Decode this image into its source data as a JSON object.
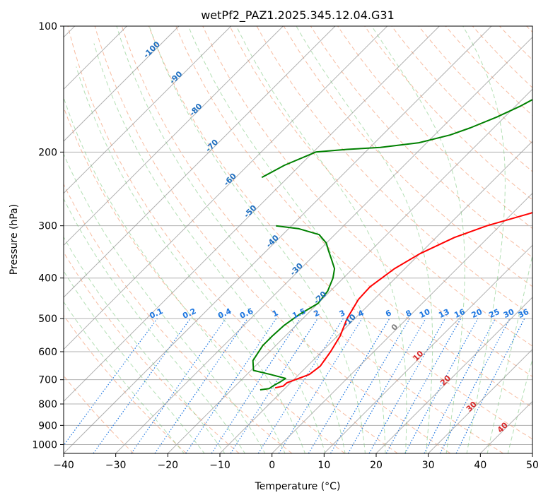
{
  "chart_data": {
    "type": "line",
    "chart_kind": "skew-t log-p diagram",
    "title": "wetPf2_PAZ1.2025.345.12.04.G31",
    "xlabel": "Temperature (°C)",
    "ylabel": "Pressure (hPa)",
    "xlim": [
      -40,
      50
    ],
    "ylim": [
      1050,
      100
    ],
    "x_ticks": [
      -40,
      -30,
      -20,
      -10,
      0,
      10,
      20,
      30,
      40,
      50
    ],
    "y_ticks": [
      1000,
      900,
      800,
      700,
      600,
      500,
      400,
      300,
      200,
      100
    ],
    "grid": true,
    "colors": {
      "temperature": "#ff0000",
      "dewpoint": "#008000",
      "isotherm": "#808080",
      "dry_adiabat": "#f4a582",
      "moist_adiabat": "#74c476",
      "mixing_ratio": "#1f77e0",
      "label_blue": "#1f6fc0",
      "label_red": "#d62728"
    },
    "series": [
      {
        "name": "temperature",
        "points": [
          {
            "p": 732,
            "t": -12.0
          },
          {
            "p": 725,
            "t": -10.8
          },
          {
            "p": 712,
            "t": -10.7
          },
          {
            "p": 700,
            "t": -9.7
          },
          {
            "p": 680,
            "t": -8.0
          },
          {
            "p": 650,
            "t": -7.5
          },
          {
            "p": 600,
            "t": -8.3
          },
          {
            "p": 550,
            "t": -9.5
          },
          {
            "p": 500,
            "t": -11.5
          },
          {
            "p": 450,
            "t": -13.0
          },
          {
            "p": 420,
            "t": -13.2
          },
          {
            "p": 380,
            "t": -12.0
          },
          {
            "p": 350,
            "t": -10.0
          },
          {
            "p": 320,
            "t": -6.5
          },
          {
            "p": 300,
            "t": -2.5
          },
          {
            "p": 280,
            "t": 3.5
          },
          {
            "p": 260,
            "t": 8.0
          },
          {
            "p": 240,
            "t": 13.0
          },
          {
            "p": 220,
            "t": 18.5
          },
          {
            "p": 200,
            "t": 22.5
          },
          {
            "p": 180,
            "t": 25.5
          },
          {
            "p": 160,
            "t": 29.5
          },
          {
            "p": 140,
            "t": 33.5
          },
          {
            "p": 120,
            "t": 38.0
          },
          {
            "p": 110,
            "t": 40.5
          },
          {
            "p": 100,
            "t": 43.0
          }
        ]
      },
      {
        "name": "dewpoint",
        "points": [
          {
            "p": 740,
            "t": -14.5
          },
          {
            "p": 735,
            "t": -13.0
          },
          {
            "p": 722,
            "t": -12.7
          },
          {
            "p": 710,
            "t": -12.2
          },
          {
            "p": 695,
            "t": -11.8
          },
          {
            "p": 680,
            "t": -15.5
          },
          {
            "p": 665,
            "t": -19.5
          },
          {
            "p": 630,
            "t": -21.5
          },
          {
            "p": 580,
            "t": -22.5
          },
          {
            "p": 550,
            "t": -22.5
          },
          {
            "p": 520,
            "t": -22.3
          },
          {
            "p": 490,
            "t": -21.5
          },
          {
            "p": 460,
            "t": -20.0
          },
          {
            "p": 430,
            "t": -20.5
          },
          {
            "p": 400,
            "t": -22.0
          },
          {
            "p": 380,
            "t": -23.5
          },
          {
            "p": 360,
            "t": -26.0
          },
          {
            "p": 345,
            "t": -28.0
          },
          {
            "p": 330,
            "t": -30.0
          },
          {
            "p": 315,
            "t": -33.0
          },
          {
            "p": 305,
            "t": -38.0
          },
          {
            "p": 300,
            "t": -43.0
          }
        ]
      },
      {
        "name": "dewpoint-upper",
        "points": [
          {
            "p": 230,
            "t": -55.0
          },
          {
            "p": 215,
            "t": -53.0
          },
          {
            "p": 200,
            "t": -49.5
          },
          {
            "p": 197,
            "t": -44.0
          },
          {
            "p": 195,
            "t": -38.0
          },
          {
            "p": 190,
            "t": -31.5
          },
          {
            "p": 182,
            "t": -27.0
          },
          {
            "p": 175,
            "t": -24.5
          },
          {
            "p": 165,
            "t": -21.5
          },
          {
            "p": 155,
            "t": -19.0
          },
          {
            "p": 140,
            "t": -16.0
          },
          {
            "p": 130,
            "t": -13.5
          },
          {
            "p": 120,
            "t": -11.5
          },
          {
            "p": 110,
            "t": -8.5
          },
          {
            "p": 100,
            "t": -4.5
          }
        ]
      }
    ],
    "dry_adiabat_labels": [
      {
        "text": "-100",
        "t": -100,
        "p": 115
      },
      {
        "text": "-90",
        "t": -90,
        "p": 134
      },
      {
        "text": "-80",
        "t": -80,
        "p": 160
      },
      {
        "text": "-70",
        "t": -70,
        "p": 195
      },
      {
        "text": "-60",
        "t": -60,
        "p": 235
      },
      {
        "text": "-50",
        "t": -50,
        "p": 280
      },
      {
        "text": "-40",
        "t": -40,
        "p": 330
      },
      {
        "text": "-30",
        "t": -30,
        "p": 385
      },
      {
        "text": "-20",
        "t": -20,
        "p": 450
      },
      {
        "text": "-10",
        "t": -10,
        "p": 510
      }
    ],
    "moist_adiabat_labels": [
      {
        "text": "0",
        "t": 0,
        "p": 530
      },
      {
        "text": "10",
        "t": 10,
        "p": 620
      },
      {
        "text": "20",
        "t": 20,
        "p": 710
      },
      {
        "text": "30",
        "t": 30,
        "p": 820
      },
      {
        "text": "40",
        "t": 40,
        "p": 920
      }
    ],
    "mixing_ratio_lines": [
      {
        "label": "0.1",
        "top": -23.6
      },
      {
        "label": "0.2",
        "top": -18.4
      },
      {
        "label": "0.4",
        "top": -12.9
      },
      {
        "label": "0.6",
        "top": -9.8
      },
      {
        "label": "1",
        "top": -5.8
      },
      {
        "label": "1.5",
        "top": -2.3
      },
      {
        "label": "2",
        "top": 0.7
      },
      {
        "label": "3",
        "top": 5.3
      },
      {
        "label": "4",
        "top": 8.7
      },
      {
        "label": "6",
        "top": 13.8
      },
      {
        "label": "8",
        "top": 17.6
      },
      {
        "label": "10",
        "top": 20.6
      },
      {
        "label": "13",
        "top": 24.3
      },
      {
        "label": "16",
        "top": 27.3
      },
      {
        "label": "20",
        "top": 30.5
      },
      {
        "label": "25",
        "top": 33.8
      },
      {
        "label": "30",
        "top": 36.6
      },
      {
        "label": "36",
        "top": 39.5
      }
    ]
  }
}
